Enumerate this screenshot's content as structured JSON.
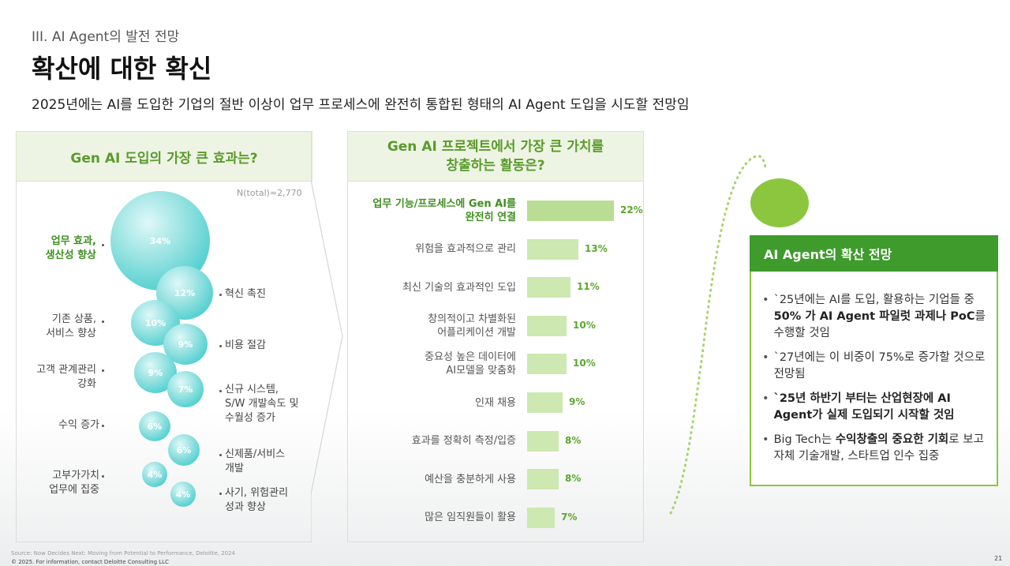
{
  "header": {
    "section": "III. AI Agent의 발전 전망",
    "title": "확산에 대한 확신",
    "subtitle": "2025년에는 AI를 도입한 기업의 절반 이상이 업무 프로세스에 완전히 통합된 형태의 AI Agent 도입을 시도할 전망임"
  },
  "panel1": {
    "title": "Gen AI 도입의 가장 큰 효과는?",
    "n_total": "N(total)=2,770",
    "bubbles": [
      "34%",
      "12%",
      "10%",
      "9%",
      "9%",
      "7%",
      "6%",
      "6%",
      "4%",
      "4%"
    ],
    "labels": {
      "productivity": [
        "업무 효과,",
        "생산성 향상"
      ],
      "innovation": "혁신 촉진",
      "existing_products": [
        "기존 상품,",
        "서비스 향상"
      ],
      "cost": "비용 절감",
      "customer": [
        "고객 관계관리",
        "강화"
      ],
      "new_systems": [
        "신규 시스템,",
        "S/W 개발속도 및",
        "수월성 증가"
      ],
      "revenue": "수익 증가",
      "new_products": [
        "신제품/서비스",
        "개발"
      ],
      "high_value": [
        "고부가가치",
        "업무에 집중"
      ],
      "fraud": [
        "사기, 위험관리",
        "성과 향상"
      ]
    }
  },
  "panel2": {
    "title_line1": "Gen AI 프로젝트에서 가장 큰 가치를",
    "title_line2": "창출하는 활동은?",
    "bars": [
      {
        "label": "업무 기능/프로세스에 Gen AI를\n완전히 연결",
        "value": 22,
        "text": "22%",
        "highlight": true
      },
      {
        "label": "위험을 효과적으로 관리",
        "value": 13,
        "text": "13%"
      },
      {
        "label": "최신 기술의 효과적인 도입",
        "value": 11,
        "text": "11%"
      },
      {
        "label": "창의적이고 차별화된\n어플리케이션 개발",
        "value": 10,
        "text": "10%"
      },
      {
        "label": "중요성 높은 데이터에\nAI모델을 맞춤화",
        "value": 10,
        "text": "10%"
      },
      {
        "label": "인재 채용",
        "value": 9,
        "text": "9%"
      },
      {
        "label": "효과를 정확히 측정/입증",
        "value": 8,
        "text": "8%"
      },
      {
        "label": "예산을 충분하게 사용",
        "value": 8,
        "text": "8%"
      },
      {
        "label": "많은 임직원들이 활용",
        "value": 7,
        "text": "7%"
      }
    ]
  },
  "panel3": {
    "title": "AI Agent의 확산 전망",
    "items": [
      {
        "html": "`25년에는 AI를 도입, 활용하는 기업들 중 <strong>50% 가 AI Agent 파일럿 과제나 PoC</strong>를 수행할 것임"
      },
      {
        "html": "`27년에는 이 비중이 75%로 증가할 것으로 전망됨"
      },
      {
        "html": "<strong>`25년 하반기 부터는 산업현장에 AI Agent가 실제 도입되기 시작할 것임</strong>"
      },
      {
        "html": "Big Tech는 <strong>수익창출의 중요한 기회</strong>로 보고 자체 기술개발, 스타트업 인수 집중"
      }
    ]
  },
  "footer": {
    "source": "Source: Now Decides Next: Moving from Potential to Performance, Deloitte, 2024",
    "copyright": "© 2025. For information, contact Deloitte Consulting LLC",
    "page": "21"
  },
  "colors": {
    "green": "#3e9b2c",
    "light_green": "#8cc63f",
    "teal": "#25c3c6",
    "bar": "#cde8b0"
  }
}
